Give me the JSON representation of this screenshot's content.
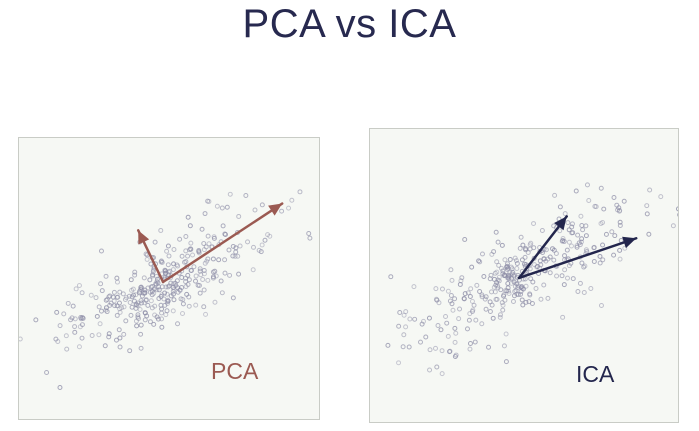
{
  "title": "PCA vs ICA",
  "colors": {
    "title": "#27294f",
    "pca_arrow": "#9b5a52",
    "ica_arrow": "#23264d",
    "point": "#8c8ca6",
    "panel_bg": "#f6f8f4"
  },
  "panels": {
    "pca": {
      "label": "PCA"
    },
    "ica": {
      "label": "ICA"
    }
  }
}
